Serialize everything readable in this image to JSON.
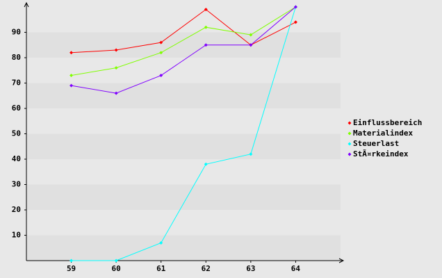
{
  "chart_data": {
    "type": "line",
    "x": [
      59,
      60,
      61,
      62,
      63,
      64
    ],
    "xlim": [
      58,
      65
    ],
    "xticks": [
      59,
      60,
      61,
      62,
      63,
      64
    ],
    "ylim": [
      0,
      100
    ],
    "yticks": [
      10,
      20,
      30,
      40,
      50,
      60,
      70,
      80,
      90
    ],
    "grid": true,
    "legend": "right",
    "series": [
      {
        "name": "Einflussbereich",
        "color": "#ff0000",
        "values": [
          82,
          83,
          86,
          99,
          85,
          94
        ]
      },
      {
        "name": "Materialindex",
        "color": "#80ff00",
        "values": [
          73,
          76,
          82,
          92,
          89,
          100
        ]
      },
      {
        "name": "Steuerlast",
        "color": "#00ffff",
        "values": [
          0,
          0,
          7,
          38,
          42,
          100
        ]
      },
      {
        "name": "StÃ¤rkeindex",
        "color": "#8000ff",
        "values": [
          69,
          66,
          73,
          85,
          85,
          100
        ]
      }
    ]
  }
}
